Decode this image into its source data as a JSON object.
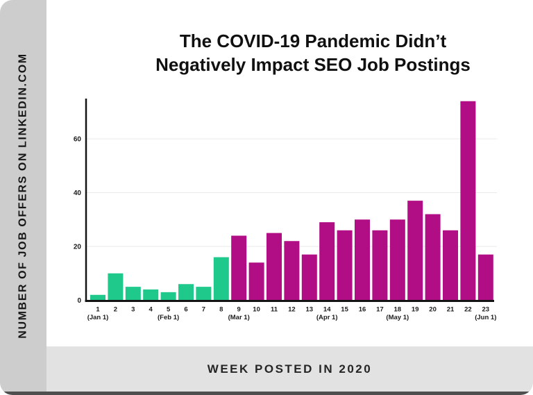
{
  "title": {
    "line1": "The COVID-19 Pandemic Didn’t",
    "line2": "Negatively Impact SEO Job Postings"
  },
  "sidebar": {
    "ylabel": "NUMBER OF JOB OFFERS ON LINKEDIN.COM"
  },
  "footer": {
    "xlabel": "WEEK POSTED IN 2020"
  },
  "chart_data": {
    "type": "bar",
    "title": "The COVID-19 Pandemic Didn’t Negatively Impact SEO Job Postings",
    "xlabel": "WEEK POSTED IN 2020",
    "ylabel": "NUMBER OF JOB OFFERS ON LINKEDIN.COM",
    "categories": [
      "1",
      "2",
      "3",
      "4",
      "5",
      "6",
      "7",
      "8",
      "9",
      "10",
      "11",
      "12",
      "13",
      "14",
      "15",
      "16",
      "17",
      "18",
      "19",
      "20",
      "21",
      "22",
      "23"
    ],
    "category_sublabels": [
      "(Jan 1)",
      "",
      "",
      "",
      "(Feb 1)",
      "",
      "",
      "",
      "(Mar 1)",
      "",
      "",
      "",
      "",
      "(Apr 1)",
      "",
      "",
      "",
      "(May 1)",
      "",
      "",
      "",
      "",
      "(Jun 1)"
    ],
    "values": [
      2,
      10,
      5,
      4,
      3,
      6,
      5,
      16,
      24,
      14,
      25,
      22,
      17,
      29,
      26,
      30,
      26,
      30,
      37,
      32,
      26,
      74,
      17
    ],
    "bar_color_keys": [
      "green",
      "green",
      "green",
      "green",
      "green",
      "green",
      "green",
      "green",
      "magenta",
      "magenta",
      "magenta",
      "magenta",
      "magenta",
      "magenta",
      "magenta",
      "magenta",
      "magenta",
      "magenta",
      "magenta",
      "magenta",
      "magenta",
      "magenta",
      "magenta"
    ],
    "palette": {
      "green": "#1fc98c",
      "magenta": "#b10d84"
    },
    "yticks": [
      0,
      20,
      40,
      60
    ],
    "ylim": [
      0,
      75
    ],
    "grid": true,
    "legend": false
  },
  "colors": {
    "sidebar_bg": "#cdcdcd",
    "footer_bg": "#e2e2e2",
    "bottom_edge": "#4f4f4f",
    "axis": "#141414",
    "gridline": "#eaeaea",
    "text": "#1b1b1b"
  }
}
